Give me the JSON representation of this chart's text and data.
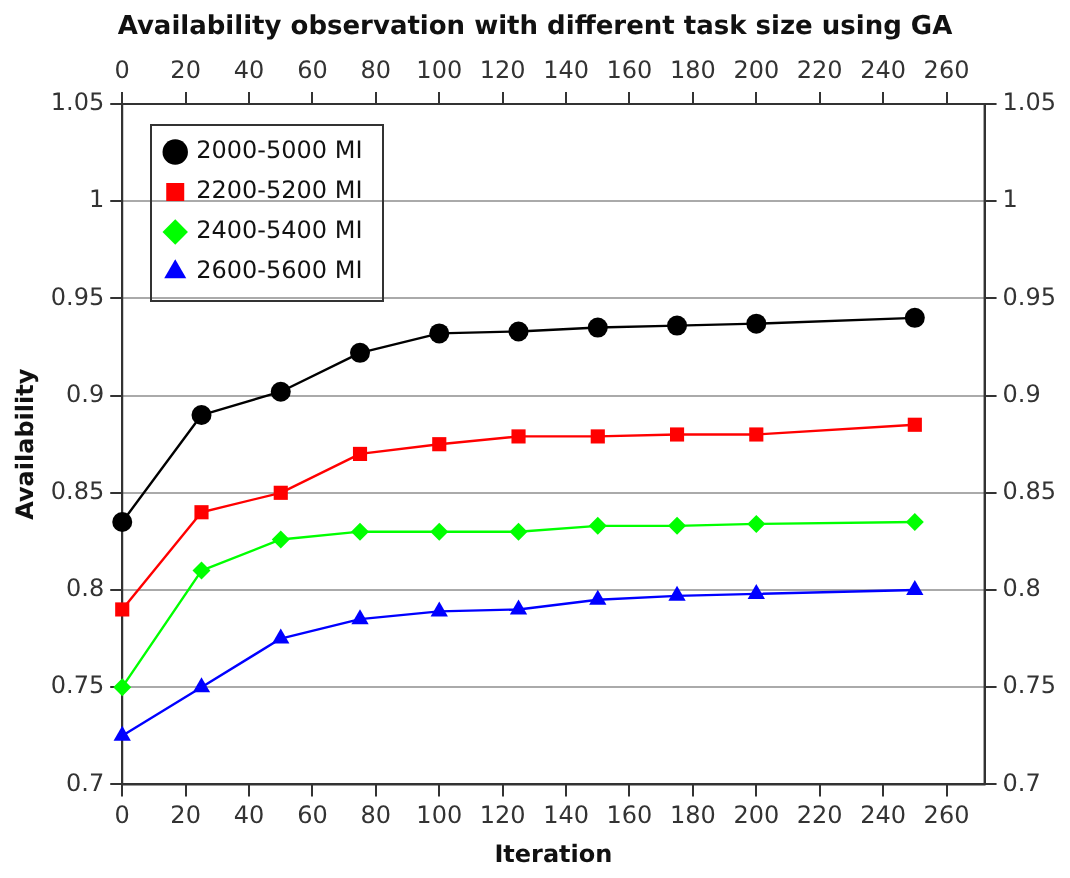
{
  "chart_data": {
    "type": "line",
    "title": "Availability observation with different task size using GA",
    "xlabel": "Iteration",
    "ylabel": "Availability",
    "x": [
      0,
      25,
      50,
      75,
      100,
      125,
      150,
      175,
      200,
      250
    ],
    "series": [
      {
        "name": "2000-5000 MI",
        "color": "#000000",
        "marker": "circle",
        "values": [
          0.835,
          0.89,
          0.902,
          0.922,
          0.932,
          0.933,
          0.935,
          0.936,
          0.937,
          0.94
        ]
      },
      {
        "name": "2200-5200 MI",
        "color": "#ff0000",
        "marker": "square",
        "values": [
          0.79,
          0.84,
          0.85,
          0.87,
          0.875,
          0.879,
          0.879,
          0.88,
          0.88,
          0.885
        ]
      },
      {
        "name": "2400-5400 MI",
        "color": "#00ff00",
        "marker": "diamond",
        "values": [
          0.75,
          0.81,
          0.826,
          0.83,
          0.83,
          0.83,
          0.833,
          0.833,
          0.834,
          0.835
        ]
      },
      {
        "name": "2600-5600 MI",
        "color": "#0000ff",
        "marker": "triangle",
        "values": [
          0.725,
          0.75,
          0.775,
          0.785,
          0.789,
          0.79,
          0.795,
          0.797,
          0.798,
          0.8
        ]
      }
    ],
    "xlim": [
      0,
      272
    ],
    "xticks": [
      0,
      20,
      40,
      60,
      80,
      100,
      120,
      140,
      160,
      180,
      200,
      220,
      240,
      260
    ],
    "x2lim": [
      0,
      272
    ],
    "x2ticks": [
      0,
      20,
      40,
      60,
      80,
      100,
      120,
      140,
      160,
      180,
      200,
      220,
      240,
      260
    ],
    "ylim": [
      0.7,
      1.05
    ],
    "yticks": [
      0.7,
      0.75,
      0.8,
      0.85,
      0.9,
      0.95,
      1,
      1.05
    ],
    "y2lim": [
      0.7,
      1.05
    ],
    "y2ticks": [
      0.7,
      0.75,
      0.8,
      0.85,
      0.9,
      0.95,
      1,
      1.05
    ],
    "grid": "y",
    "legend": "top left",
    "line_style": "solid"
  }
}
